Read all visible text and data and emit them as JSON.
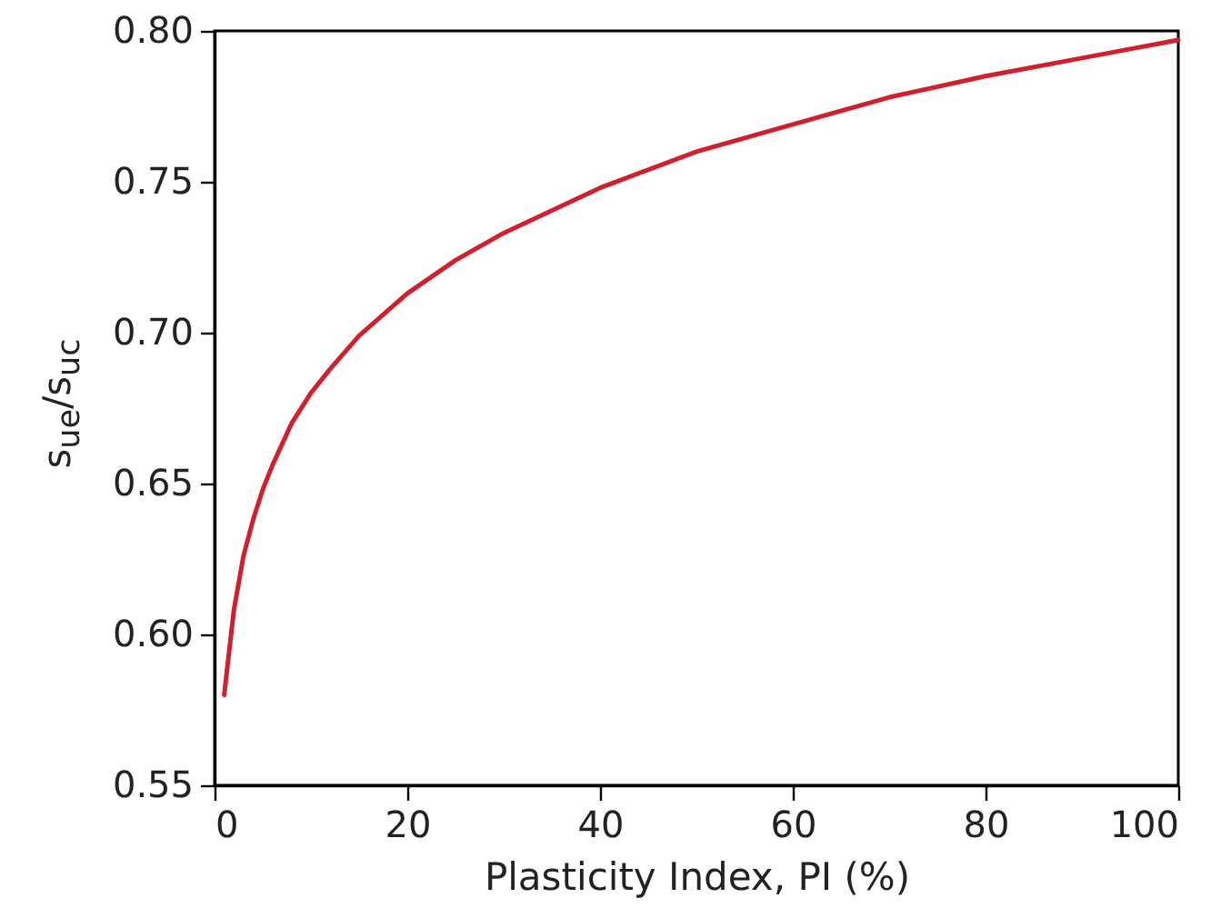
{
  "chart_data": {
    "type": "line",
    "xlabel": "Plasticity Index, PI (%)",
    "ylabel": "s$_{ue}$/s$_{uc}$",
    "x": [
      1,
      2,
      3,
      4,
      5,
      6,
      8,
      10,
      12,
      15,
      20,
      25,
      30,
      40,
      50,
      60,
      70,
      80,
      90,
      100
    ],
    "series": [
      {
        "color": "#d0202e",
        "values": [
          0.58,
          0.608,
          0.626,
          0.638,
          0.648,
          0.656,
          0.67,
          0.68,
          0.688,
          0.699,
          0.713,
          0.724,
          0.733,
          0.748,
          0.76,
          0.769,
          0.778,
          0.785,
          0.791,
          0.797
        ]
      }
    ],
    "xlim": [
      0,
      100
    ],
    "xticks": [
      0,
      20,
      40,
      60,
      80,
      100
    ],
    "ylim": [
      0.55,
      0.8
    ],
    "yticks": [
      {
        "value": 0.55,
        "label": "0.55"
      },
      {
        "value": 0.6,
        "label": "0.60"
      },
      {
        "value": 0.65,
        "label": "0.65"
      },
      {
        "value": 0.7,
        "label": "0.70"
      },
      {
        "value": 0.75,
        "label": "0.75"
      },
      {
        "value": 0.8,
        "label": "0.80"
      }
    ],
    "grid": false,
    "marker": "none",
    "line_style": "solid"
  }
}
